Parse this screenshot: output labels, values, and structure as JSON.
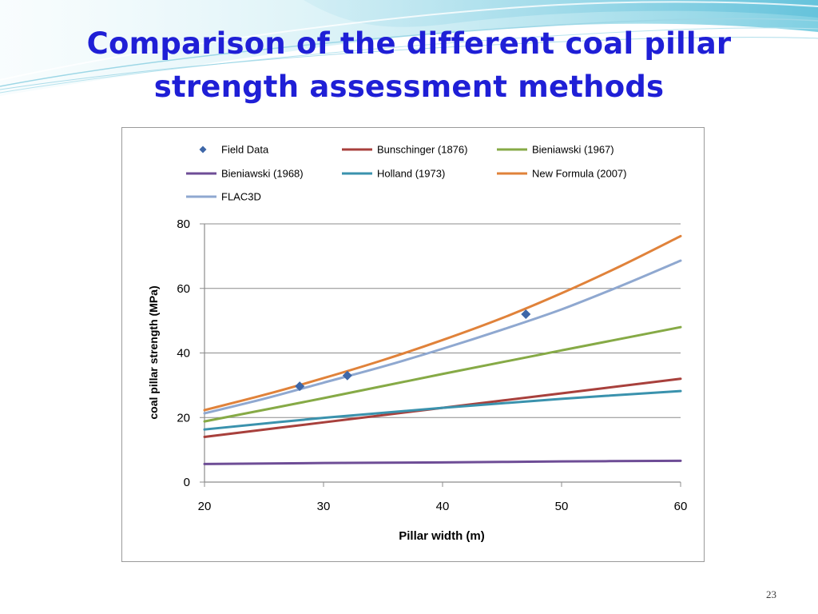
{
  "slide": {
    "title_line1": "Comparison of the different coal pillar",
    "title_line2": "strength assessment methods",
    "page_number": "23"
  },
  "colors": {
    "title": "#1f1fd6",
    "Field Data": "#3e67a8",
    "Bunschinger (1876)": "#a8403c",
    "Bieniawski (1967)": "#86aa46",
    "Bieniawski (1968)": "#6e4d96",
    "Holland (1973)": "#3a92ad",
    "New Formula (2007)": "#e0823a",
    "FLAC3D": "#8fa8d0"
  },
  "chart_data": {
    "type": "line",
    "xlabel": "Pillar width (m)",
    "ylabel": "coal pillar strength (MPa)",
    "xlim": [
      20,
      60
    ],
    "ylim": [
      0,
      80
    ],
    "xticks": [
      20,
      30,
      40,
      50,
      60
    ],
    "yticks": [
      0,
      20,
      40,
      60,
      80
    ],
    "grid": "horizontal",
    "legend_position": "top",
    "legend": [
      {
        "name": "Field Data",
        "kind": "marker"
      },
      {
        "name": "Bunschinger (1876)",
        "kind": "line"
      },
      {
        "name": "Bieniawski (1967)",
        "kind": "line"
      },
      {
        "name": "Bieniawski (1968)",
        "kind": "line"
      },
      {
        "name": "Holland (1973)",
        "kind": "line"
      },
      {
        "name": "New Formula (2007)",
        "kind": "line"
      },
      {
        "name": "FLAC3D",
        "kind": "line"
      }
    ],
    "series": [
      {
        "name": "Bieniawski (1968)",
        "kind": "line",
        "x": [
          20,
          30,
          40,
          50,
          60
        ],
        "y": [
          5.6,
          5.9,
          6.1,
          6.4,
          6.6
        ]
      },
      {
        "name": "Bunschinger (1876)",
        "kind": "line",
        "x": [
          20,
          30,
          40,
          50,
          60
        ],
        "y": [
          14,
          18.5,
          23,
          27.5,
          32
        ]
      },
      {
        "name": "Holland (1973)",
        "kind": "line",
        "x": [
          20,
          30,
          40,
          50,
          60
        ],
        "y": [
          16.3,
          19.9,
          23,
          25.8,
          28.2
        ]
      },
      {
        "name": "Bieniawski (1967)",
        "kind": "line",
        "x": [
          20,
          30,
          40,
          50,
          60
        ],
        "y": [
          18.8,
          26,
          33.5,
          40.8,
          48
        ]
      },
      {
        "name": "FLAC3D",
        "kind": "line",
        "x": [
          20,
          25,
          30,
          35,
          40,
          45,
          50,
          55,
          60
        ],
        "y": [
          21.3,
          25.8,
          30.8,
          35.8,
          41.3,
          47.2,
          53.5,
          60.8,
          68.6
        ]
      },
      {
        "name": "New Formula (2007)",
        "kind": "line",
        "x": [
          20,
          25,
          30,
          35,
          40,
          45,
          50,
          55,
          60
        ],
        "y": [
          22.3,
          27,
          32.2,
          37.8,
          44,
          50.8,
          58.5,
          67,
          76.2
        ]
      },
      {
        "name": "Field Data",
        "kind": "scatter",
        "x": [
          28,
          32,
          47
        ],
        "y": [
          29.7,
          33,
          52
        ]
      }
    ]
  }
}
